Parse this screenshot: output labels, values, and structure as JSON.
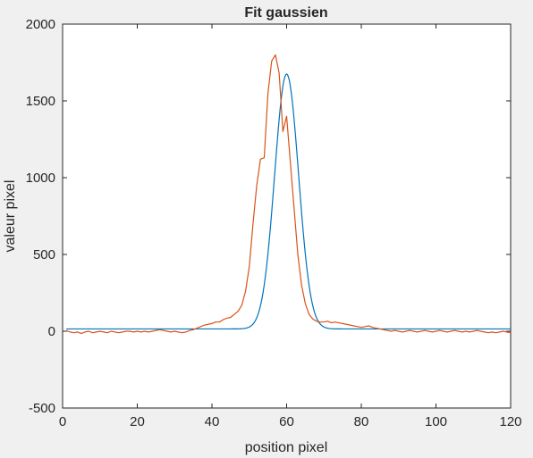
{
  "chart_data": {
    "type": "line",
    "title": "Fit gaussien",
    "xlabel": "position pixel",
    "ylabel": "valeur pixel",
    "xlim": [
      0,
      120
    ],
    "ylim": [
      -500,
      2000
    ],
    "xticks": [
      0,
      20,
      40,
      60,
      80,
      100,
      120
    ],
    "yticks": [
      -500,
      0,
      500,
      1000,
      1500,
      2000
    ],
    "grid": false,
    "legend": "none",
    "series": [
      {
        "color": "#0072bd",
        "style": "gaussian-fit",
        "amplitude": 1660,
        "center": 60,
        "sigma": 3.2,
        "offset": 15,
        "x": [
          1,
          120
        ]
      },
      {
        "color": "#d95319",
        "style": "data",
        "x": [
          1,
          2,
          3,
          4,
          5,
          6,
          7,
          8,
          9,
          10,
          11,
          12,
          13,
          14,
          15,
          16,
          17,
          18,
          19,
          20,
          21,
          22,
          23,
          24,
          25,
          26,
          27,
          28,
          29,
          30,
          31,
          32,
          33,
          34,
          35,
          36,
          37,
          38,
          39,
          40,
          41,
          42,
          43,
          44,
          45,
          46,
          47,
          48,
          49,
          50,
          51,
          52,
          53,
          54,
          55,
          56,
          57,
          58,
          59,
          60,
          61,
          62,
          63,
          64,
          65,
          66,
          67,
          68,
          69,
          70,
          71,
          72,
          73,
          74,
          75,
          76,
          77,
          78,
          79,
          80,
          81,
          82,
          83,
          84,
          85,
          86,
          87,
          88,
          89,
          90,
          91,
          92,
          93,
          94,
          95,
          96,
          97,
          98,
          99,
          100,
          101,
          102,
          103,
          104,
          105,
          106,
          107,
          108,
          109,
          110,
          111,
          112,
          113,
          114,
          115,
          116,
          117,
          118,
          119,
          120
        ],
        "y": [
          5,
          -5,
          -10,
          -5,
          -15,
          -5,
          0,
          -10,
          -5,
          0,
          -5,
          -10,
          0,
          -5,
          -10,
          -5,
          0,
          0,
          -5,
          0,
          -5,
          0,
          -5,
          0,
          5,
          10,
          5,
          0,
          -5,
          0,
          -5,
          -10,
          -5,
          5,
          10,
          20,
          30,
          40,
          45,
          50,
          60,
          60,
          75,
          85,
          90,
          110,
          130,
          170,
          260,
          420,
          700,
          950,
          1120,
          1130,
          1550,
          1760,
          1800,
          1680,
          1300,
          1400,
          1100,
          800,
          500,
          300,
          180,
          110,
          80,
          65,
          60,
          60,
          65,
          55,
          60,
          55,
          50,
          45,
          40,
          35,
          30,
          25,
          30,
          35,
          25,
          20,
          15,
          10,
          5,
          0,
          5,
          0,
          -5,
          0,
          5,
          0,
          -5,
          0,
          5,
          0,
          -5,
          0,
          5,
          0,
          -5,
          0,
          5,
          0,
          -5,
          0,
          -5,
          0,
          5,
          0,
          -5,
          -10,
          -5,
          -10,
          -5,
          0,
          -5,
          -10
        ]
      }
    ]
  }
}
